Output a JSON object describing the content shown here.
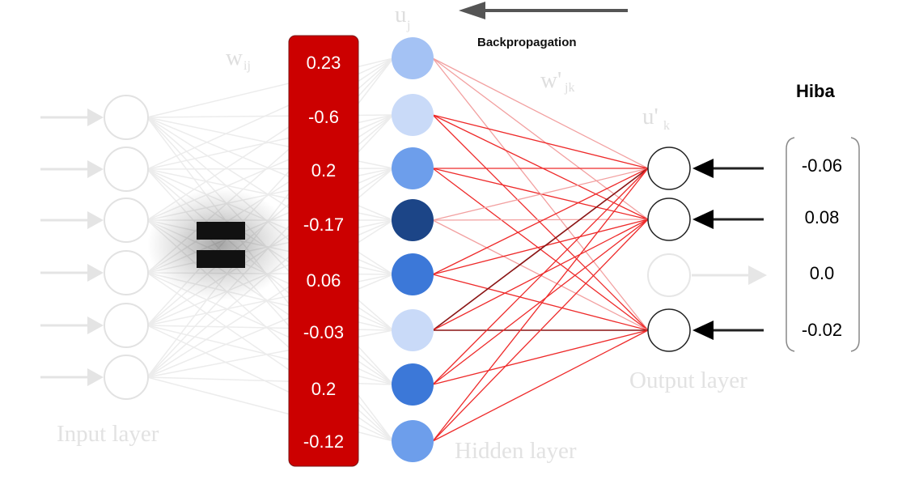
{
  "diagram": {
    "labels": {
      "input_layer": "Input layer",
      "hidden_layer": "Hidden layer",
      "output_layer": "Output layer",
      "w_ij": "w",
      "w_ij_sub": "ij",
      "u_j": "u",
      "u_j_sub": "j",
      "w_prime_jk": "w'",
      "w_prime_jk_sub": "jk",
      "u_prime_k": "u'",
      "u_prime_k_sub": "k"
    },
    "backpropagation_label": "Backpropagation",
    "equals_sign": "=",
    "hidden_values": [
      "0.23",
      "-0.6",
      "0.2",
      "-0.17",
      "0.06",
      "-0.03",
      "0.2",
      "-0.12"
    ],
    "hidden_node_colors": [
      "#a4c2f4",
      "#c9daf8",
      "#6d9eeb",
      "#1c4587",
      "#3c78d8",
      "#c9daf8",
      "#3c78d8",
      "#6d9eeb"
    ],
    "error_title": "Hiba",
    "error_values": [
      "-0.06",
      "0.08",
      "0.0",
      "-0.02"
    ],
    "colors": {
      "value_box": "#cc0000",
      "value_text": "#ffffff",
      "faded": "#e6e6e6",
      "arrow": "#555555",
      "connection_red": "#ee2222",
      "connection_dark": "#7a1111"
    }
  }
}
